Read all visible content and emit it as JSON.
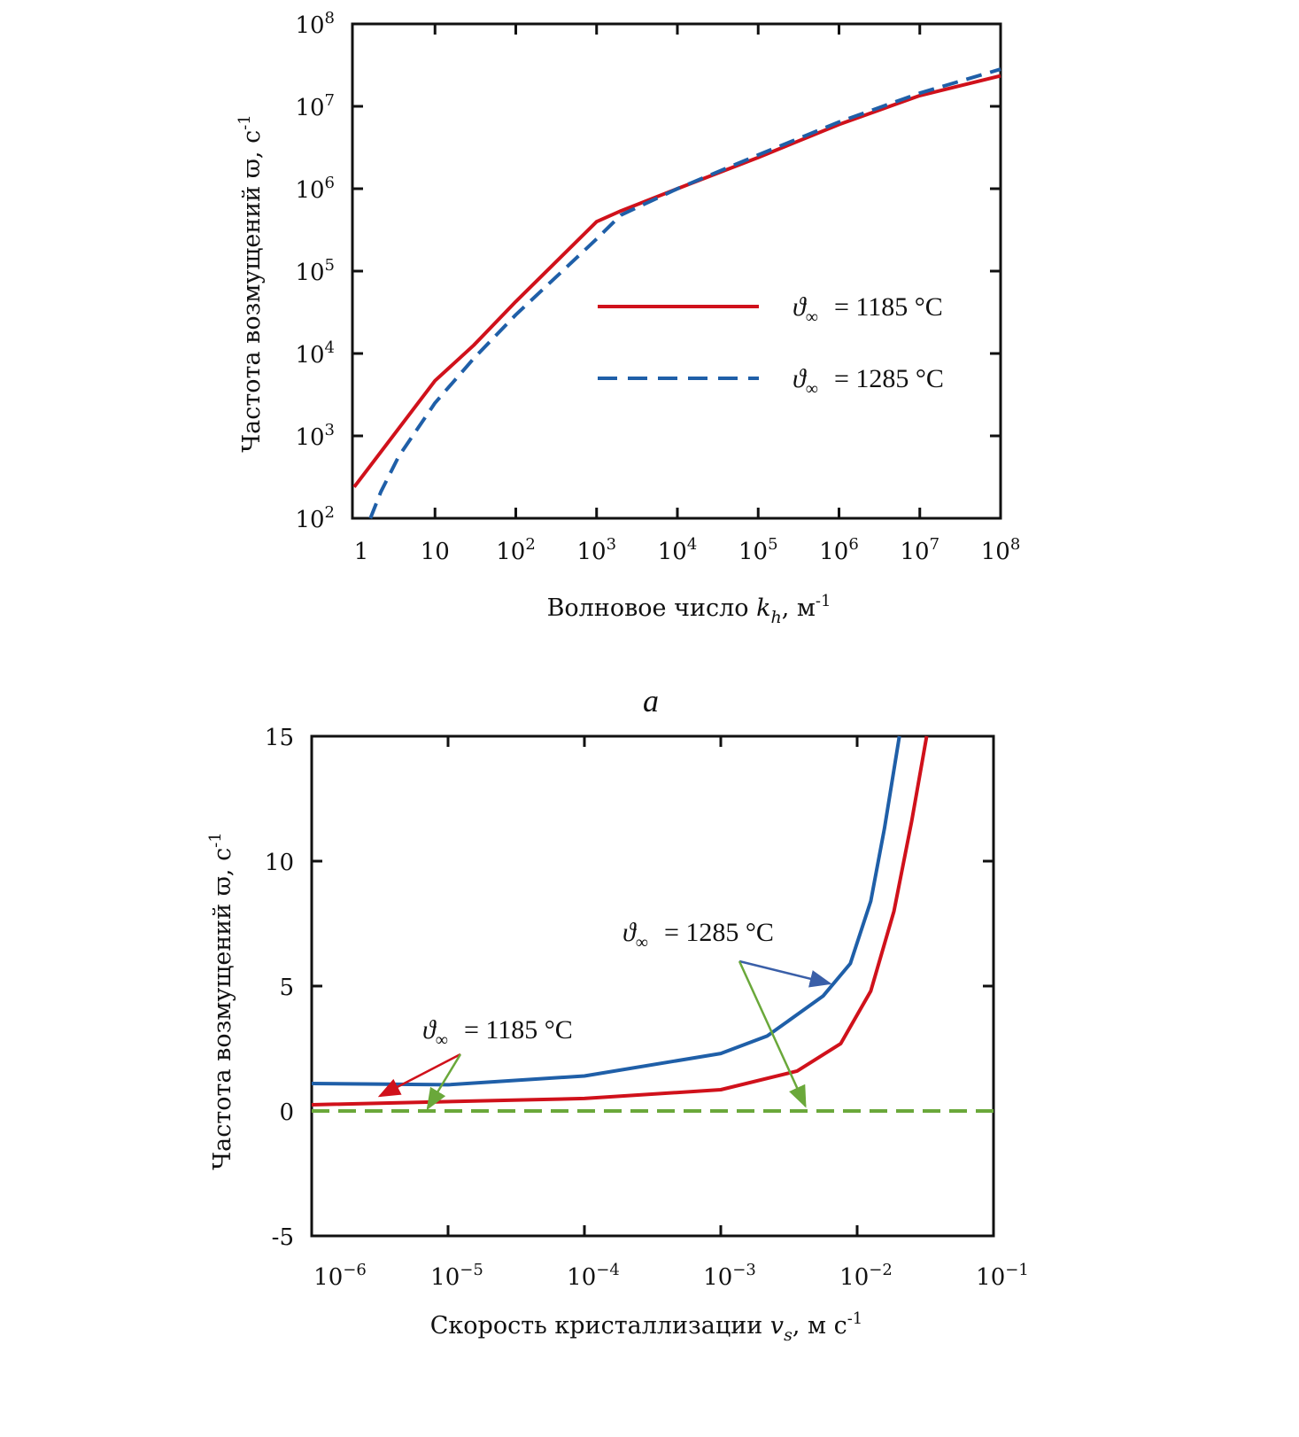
{
  "colors": {
    "red": "#d0111b",
    "blue": "#1f5fa8",
    "green": "#6aa83a",
    "axis": "#111111"
  },
  "chart_data": [
    {
      "id": "a",
      "type": "line",
      "caption": "a",
      "xscale": "log",
      "yscale": "log",
      "xlabel": "Волновое число",
      "xlabel_var": "k",
      "xlabel_sub": "h",
      "xlabel_unit": ", м",
      "xlabel_unit_exp": "-1",
      "ylabel": "Частота возмущений ϖ, с",
      "ylabel_exp": "-1",
      "xlim_log10": [
        0,
        8
      ],
      "ylim_log10": [
        2,
        8
      ],
      "xticks": [
        {
          "b": "1",
          "e": ""
        },
        {
          "b": "10",
          "e": ""
        },
        {
          "b": "10",
          "e": "2"
        },
        {
          "b": "10",
          "e": "3"
        },
        {
          "b": "10",
          "e": "4"
        },
        {
          "b": "10",
          "e": "5"
        },
        {
          "b": "10",
          "e": "6"
        },
        {
          "b": "10",
          "e": "7"
        },
        {
          "b": "10",
          "e": "8"
        }
      ],
      "yticks": [
        {
          "b": "10",
          "e": "2"
        },
        {
          "b": "10",
          "e": "3"
        },
        {
          "b": "10",
          "e": "4"
        },
        {
          "b": "10",
          "e": "5"
        },
        {
          "b": "10",
          "e": "6"
        },
        {
          "b": "10",
          "e": "7"
        },
        {
          "b": "10",
          "e": "8"
        }
      ],
      "legend_position": "center-right",
      "series": [
        {
          "name": "ϑ∞ = 1185 °C",
          "sym": "ϑ",
          "sub": "∞",
          "label": "= 1185 °C",
          "color": "red",
          "dash": false,
          "log10_x": [
            0,
            1,
            1.48,
            2,
            3,
            3.3,
            4,
            5,
            6,
            7,
            8
          ],
          "log10_y": [
            2.38,
            3.67,
            4.1,
            4.63,
            5.6,
            5.73,
            6.0,
            6.38,
            6.78,
            7.13,
            7.37
          ]
        },
        {
          "name": "ϑ∞ = 1285 °C",
          "sym": "ϑ",
          "sub": "∞",
          "label": "= 1285 °C",
          "color": "blue",
          "dash": true,
          "log10_x": [
            0.2,
            0.33,
            0.55,
            1,
            1.48,
            2,
            3,
            3.3,
            4,
            5,
            6,
            7,
            8
          ],
          "log10_y": [
            2.0,
            2.32,
            2.75,
            3.4,
            3.94,
            4.47,
            5.39,
            5.68,
            6.0,
            6.41,
            6.81,
            7.16,
            7.45
          ]
        }
      ]
    },
    {
      "id": "b",
      "type": "line",
      "xscale": "log",
      "yscale": "linear",
      "xlabel": "Скорость кристаллизации",
      "xlabel_var": "v",
      "xlabel_sub": "s",
      "xlabel_unit": ", м с",
      "xlabel_unit_exp": "-1",
      "ylabel": "Частота возмущений ϖ, с",
      "ylabel_exp": "-1",
      "xlim_log10": [
        -6,
        -1
      ],
      "ylim": [
        -5,
        15
      ],
      "xticks": [
        {
          "b": "10",
          "e": "−6"
        },
        {
          "b": "10",
          "e": "−5"
        },
        {
          "b": "10",
          "e": "−4"
        },
        {
          "b": "10",
          "e": "−3"
        },
        {
          "b": "10",
          "e": "−2"
        },
        {
          "b": "10",
          "e": "−1"
        }
      ],
      "yticks": [
        "-5",
        "0",
        "5",
        "10",
        "15"
      ],
      "ytick_values": [
        -5,
        0,
        5,
        10,
        15
      ],
      "series": [
        {
          "name": "ϑ∞ = 1285 °C",
          "color": "blue",
          "dash": false,
          "log10_x": [
            -6,
            -5,
            -4,
            -3,
            -2.66,
            -2.25,
            -2.05,
            -1.9,
            -1.8,
            -1.69
          ],
          "y": [
            1.1,
            1.05,
            1.4,
            2.3,
            3.0,
            4.6,
            5.9,
            8.4,
            11.3,
            15
          ]
        },
        {
          "name": "ϑ∞ = 1185 °C",
          "color": "red",
          "dash": false,
          "log10_x": [
            -6,
            -4,
            -3,
            -2.44,
            -2.12,
            -1.9,
            -1.73,
            -1.6,
            -1.49
          ],
          "y": [
            0.25,
            0.5,
            0.85,
            1.6,
            2.7,
            4.8,
            8,
            11.6,
            15
          ]
        },
        {
          "name": "zero",
          "color": "green",
          "dash": true,
          "log10_x": [
            -6,
            -1
          ],
          "y": [
            0,
            0
          ]
        }
      ],
      "annotations": [
        {
          "sym": "ϑ",
          "sub": "∞",
          "label": "= 1285 °C",
          "arrows": [
            {
              "color": "blue",
              "to_log10_x": -2.2,
              "to_y": 5.1
            },
            {
              "color": "green",
              "to_log10_x": -2.38,
              "to_y": 0.2
            }
          ]
        },
        {
          "sym": "ϑ",
          "sub": "∞",
          "label": "= 1185 °C",
          "arrows": [
            {
              "color": "red",
              "to_log10_x": -5.5,
              "to_y": 0.6
            },
            {
              "color": "green",
              "to_log10_x": -5.15,
              "to_y": 0.1
            }
          ]
        }
      ]
    }
  ]
}
